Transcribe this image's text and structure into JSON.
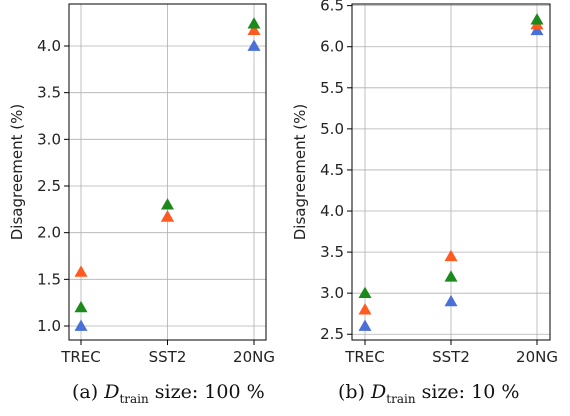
{
  "chart_data": [
    {
      "type": "scatter",
      "ylabel": "Disagreement (%)",
      "categories": [
        "TREC",
        "SST2",
        "20NG"
      ],
      "ylim": [
        0.85,
        4.45
      ],
      "yticks": [
        "1.0",
        "1.5",
        "2.0",
        "2.5",
        "3.0",
        "3.5",
        "4.0"
      ],
      "grid": true,
      "marker": "triangle",
      "series": [
        {
          "color": "#4a6fd6",
          "values": [
            1.0,
            2.17,
            4.0
          ]
        },
        {
          "color": "#ff5a1f",
          "values": [
            1.58,
            2.17,
            4.17
          ]
        },
        {
          "color": "#1a8a1a",
          "values": [
            1.2,
            2.3,
            4.24
          ]
        }
      ]
    },
    {
      "type": "scatter",
      "ylabel": "Disagreement (%)",
      "categories": [
        "TREC",
        "SST2",
        "20NG"
      ],
      "ylim": [
        2.43,
        6.52
      ],
      "yticks": [
        "2.5",
        "3.0",
        "3.5",
        "4.0",
        "4.5",
        "5.0",
        "5.5",
        "6.0",
        "6.5"
      ],
      "grid": true,
      "marker": "triangle",
      "series": [
        {
          "color": "#4a6fd6",
          "values": [
            2.6,
            2.9,
            6.2
          ]
        },
        {
          "color": "#ff5a1f",
          "values": [
            2.8,
            3.45,
            6.27
          ]
        },
        {
          "color": "#1a8a1a",
          "values": [
            3.0,
            3.2,
            6.33
          ]
        }
      ]
    }
  ],
  "captions": [
    {
      "prefix": "(a) ",
      "var": "D",
      "sub": "train",
      "suffix": " size: 100 %"
    },
    {
      "prefix": "(b) ",
      "var": "D",
      "sub": "train",
      "suffix": " size: 10 %"
    }
  ]
}
